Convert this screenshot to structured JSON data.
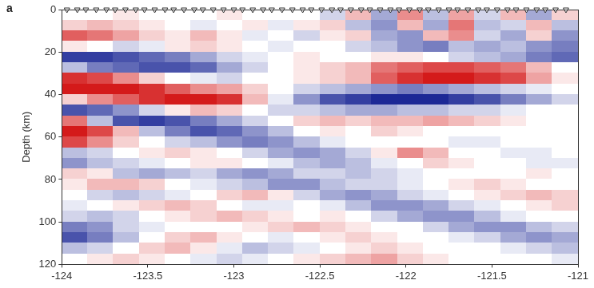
{
  "chart_data": {
    "type": "heatmap",
    "panel": "a",
    "ylabel": "Depth (km)",
    "xlim": [
      -124,
      -121
    ],
    "xticks": [
      -124,
      -123.5,
      -123,
      -122.5,
      -122,
      -121.5,
      -121
    ],
    "ylim": [
      120,
      0
    ],
    "yticks": [
      0,
      20,
      40,
      60,
      80,
      100,
      120
    ],
    "grid": false,
    "cells": {
      "zlim": [
        -1,
        1
      ],
      "colors": [
        "#1c2896",
        "#ffffff",
        "#d41a1a"
      ],
      "x": [
        -123.925,
        -123.775,
        -123.625,
        -123.475,
        -123.325,
        -123.175,
        -123.025,
        -122.875,
        -122.725,
        -122.575,
        -122.425,
        -122.275,
        -122.125,
        -121.975,
        -121.825,
        -121.675,
        -121.525,
        -121.375,
        -121.225,
        -121.075
      ],
      "y": [
        2.5,
        7.5,
        12.5,
        17.5,
        22.5,
        27.5,
        32.5,
        37.5,
        42.5,
        47.5,
        52.5,
        57.5,
        62.5,
        67.5,
        72.5,
        77.5,
        82.5,
        87.5,
        92.5,
        97.5,
        102.5,
        107.5,
        112.5,
        117.5
      ],
      "values": [
        [
          0,
          0,
          0.1,
          0,
          0,
          0,
          0.1,
          0,
          0,
          0,
          -0.2,
          0.3,
          -0.4,
          0.5,
          -0.3,
          0.4,
          -0.2,
          0.3,
          -0.4,
          0.2
        ],
        [
          0.2,
          0.3,
          0.2,
          0.1,
          0,
          -0.1,
          0,
          0.1,
          -0.1,
          0.1,
          0.2,
          -0.3,
          -0.5,
          0.3,
          -0.4,
          0.6,
          -0.3,
          -0.2,
          0.3,
          -0.3
        ],
        [
          0.7,
          0.6,
          0.4,
          0.2,
          0.1,
          0.3,
          0.1,
          -0.1,
          0,
          -0.2,
          0.1,
          0.2,
          -0.4,
          -0.5,
          0.3,
          0.5,
          -0.2,
          -0.4,
          0.2,
          -0.5
        ],
        [
          0.1,
          0,
          -0.2,
          -0.1,
          0.1,
          0.2,
          0.1,
          0,
          -0.1,
          0,
          0,
          -0.2,
          -0.3,
          -0.5,
          -0.6,
          -0.3,
          -0.4,
          -0.3,
          -0.5,
          -0.6
        ],
        [
          -0.9,
          -0.9,
          -0.8,
          -0.7,
          -0.6,
          -0.4,
          -0.2,
          -0.1,
          0,
          0.1,
          0,
          0,
          0.1,
          0.1,
          0,
          -0.2,
          -0.3,
          -0.4,
          -0.6,
          -0.7
        ],
        [
          -0.3,
          -0.6,
          -0.7,
          -0.8,
          -0.8,
          -0.7,
          -0.4,
          -0.2,
          0,
          0.1,
          0.2,
          0.3,
          0.6,
          0.7,
          0.8,
          0.8,
          0.7,
          0.6,
          0.3,
          0
        ],
        [
          0.9,
          0.8,
          0.5,
          0.2,
          0,
          -0.1,
          -0.2,
          0,
          0,
          0.1,
          0.2,
          0.3,
          0.7,
          0.9,
          1,
          1,
          0.9,
          0.8,
          0.4,
          0.1
        ],
        [
          1,
          1,
          1,
          0.9,
          0.7,
          0.5,
          0.4,
          0.2,
          0,
          -0.2,
          -0.3,
          -0.4,
          -0.5,
          -0.6,
          -0.5,
          -0.4,
          -0.3,
          -0.2,
          -0.1,
          0
        ],
        [
          0.2,
          0.5,
          0.7,
          0.9,
          1,
          1,
          0.9,
          0.3,
          -0.1,
          -0.5,
          -0.8,
          -0.9,
          -1,
          -1,
          -1,
          -0.9,
          -0.8,
          -0.6,
          -0.4,
          -0.2
        ],
        [
          -0.8,
          -0.7,
          -0.5,
          -0.2,
          0.1,
          0.3,
          0.2,
          0,
          -0.2,
          -0.2,
          -0.3,
          -0.4,
          -0.4,
          -0.3,
          -0.3,
          -0.2,
          -0.2,
          -0.1,
          0,
          0
        ],
        [
          0.6,
          -0.3,
          -0.8,
          -0.9,
          -0.8,
          -0.6,
          -0.4,
          -0.2,
          0,
          0.2,
          0.3,
          0.2,
          0.3,
          0.3,
          0.4,
          0.3,
          0.2,
          0.1,
          0,
          0
        ],
        [
          1,
          0.8,
          0.3,
          -0.3,
          -0.6,
          -0.8,
          -0.7,
          -0.5,
          -0.3,
          0,
          0.1,
          0,
          0.2,
          0.1,
          0,
          0,
          0,
          0,
          0,
          0
        ],
        [
          0.8,
          0.5,
          0.2,
          0,
          -0.2,
          -0.3,
          -0.5,
          -0.6,
          -0.5,
          -0.3,
          -0.1,
          0,
          0,
          0,
          0,
          -0.1,
          -0.1,
          0,
          0,
          0
        ],
        [
          -0.3,
          -0.2,
          0,
          0.1,
          0.2,
          0.1,
          0,
          -0.2,
          -0.4,
          -0.5,
          -0.4,
          -0.2,
          0.1,
          0.5,
          0.3,
          0,
          0,
          -0.1,
          -0.1,
          0
        ],
        [
          -0.5,
          -0.3,
          -0.2,
          -0.1,
          0,
          0.1,
          0.1,
          0,
          -0.1,
          -0.3,
          -0.4,
          -0.3,
          -0.1,
          0,
          0.2,
          0.1,
          0,
          0,
          -0.1,
          -0.1
        ],
        [
          0.2,
          0.1,
          -0.3,
          -0.4,
          -0.3,
          -0.2,
          -0.4,
          -0.5,
          -0.4,
          -0.2,
          -0.2,
          -0.3,
          -0.2,
          -0.1,
          0,
          0,
          0,
          0,
          0.1,
          0
        ],
        [
          0.1,
          0.3,
          0.3,
          0.2,
          0,
          -0.1,
          -0.2,
          -0.3,
          -0.5,
          -0.5,
          -0.3,
          -0.2,
          -0.2,
          -0.1,
          0,
          0.1,
          0.2,
          0.1,
          0,
          0
        ],
        [
          0,
          -0.2,
          -0.3,
          -0.2,
          -0.1,
          0,
          0.2,
          0.3,
          0.1,
          -0.2,
          -0.4,
          -0.5,
          -0.4,
          -0.2,
          -0.1,
          0,
          0.1,
          0.2,
          0.3,
          0.2
        ],
        [
          -0.1,
          0,
          0.1,
          0.2,
          0.3,
          0.2,
          0,
          -0.1,
          -0.1,
          0,
          -0.1,
          -0.3,
          -0.5,
          -0.5,
          -0.4,
          -0.2,
          -0.1,
          0,
          0.1,
          0.2
        ],
        [
          -0.2,
          -0.3,
          -0.2,
          0,
          0.1,
          0.2,
          0.3,
          0.2,
          0.1,
          0,
          0.1,
          0,
          -0.2,
          -0.4,
          -0.5,
          -0.5,
          -0.3,
          -0.1,
          0,
          0
        ],
        [
          -0.6,
          -0.5,
          -0.2,
          -0.1,
          0,
          0,
          0,
          0.1,
          0.2,
          0.3,
          0.2,
          0.1,
          0,
          0,
          -0.2,
          -0.4,
          -0.5,
          -0.5,
          -0.3,
          -0.2
        ],
        [
          -0.8,
          -0.6,
          -0.3,
          0,
          0.2,
          0.3,
          0.1,
          0,
          -0.1,
          0,
          0.1,
          0.2,
          0.1,
          0,
          0,
          -0.1,
          -0.2,
          -0.4,
          -0.5,
          -0.4
        ],
        [
          -0.3,
          -0.2,
          0,
          0.2,
          0.3,
          0.1,
          -0.1,
          -0.3,
          -0.2,
          -0.1,
          0,
          0.1,
          0.2,
          0.1,
          0,
          0,
          0,
          -0.1,
          -0.2,
          -0.3
        ],
        [
          0,
          0.1,
          0.2,
          0.1,
          0,
          -0.1,
          -0.2,
          -0.1,
          0,
          0.1,
          0.2,
          0.3,
          0.4,
          0.2,
          0.1,
          0,
          0,
          0,
          0,
          -0.1
        ]
      ]
    },
    "stations": {
      "marker": "triangle",
      "color": "#333333",
      "x": [
        -123.97,
        -123.91,
        -123.86,
        -123.8,
        -123.74,
        -123.69,
        -123.63,
        -123.57,
        -123.52,
        -123.46,
        -123.4,
        -123.35,
        -123.29,
        -123.23,
        -123.18,
        -123.12,
        -123.06,
        -123.0,
        -122.95,
        -122.89,
        -122.83,
        -122.78,
        -122.72,
        -122.66,
        -122.6,
        -122.55,
        -122.49,
        -122.43,
        -122.38,
        -122.32,
        -122.26,
        -122.21,
        -122.15,
        -122.09,
        -122.04,
        -121.98,
        -121.92,
        -121.87,
        -121.81,
        -121.75,
        -121.7,
        -121.64,
        -121.58,
        -121.53,
        -121.47,
        -121.41,
        -121.36,
        -121.3,
        -121.24,
        -121.19,
        -121.13,
        -121.07
      ]
    }
  }
}
